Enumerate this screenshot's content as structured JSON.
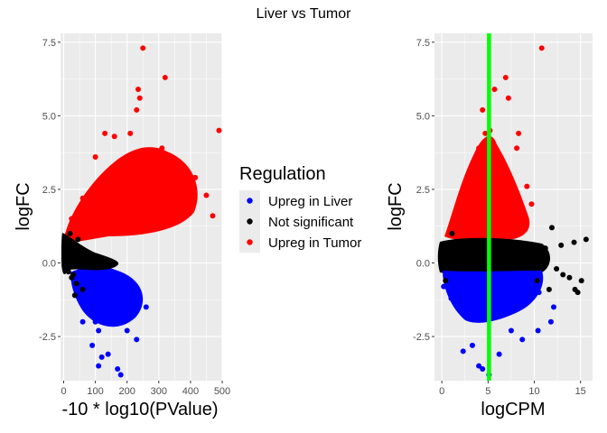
{
  "title": "Liver vs Tumor",
  "legend": {
    "title": "Regulation",
    "placement": "center",
    "entries": [
      {
        "label": "Upreg in Liver",
        "color": "#0000ff"
      },
      {
        "label": "Not significant",
        "color": "#000000"
      },
      {
        "label": "Upreg in Tumor",
        "color": "#ff0000"
      }
    ]
  },
  "colors": {
    "panel_bg": "#ebebeb",
    "grid": "#ffffff",
    "vline": "#00ff00"
  },
  "chart_data": [
    {
      "type": "scatter",
      "xlabel": "-10 * log10(PValue)",
      "ylabel": "logFC",
      "xlim": [
        -10,
        500
      ],
      "ylim": [
        -4.0,
        7.8
      ],
      "xticks": [
        0,
        100,
        200,
        300,
        400,
        500
      ],
      "yticks": [
        -2.5,
        0.0,
        2.5,
        5.0,
        7.5
      ],
      "ytick_labels": [
        "-2.5",
        "0.0",
        "2.5",
        "5.0",
        "7.5"
      ],
      "grid": true,
      "series": [
        {
          "name": "Upreg in Tumor",
          "color": "#ff0000",
          "points": [
            [
              250,
              7.3
            ],
            [
              235,
              5.9
            ],
            [
              320,
              6.3
            ],
            [
              240,
              5.6
            ],
            [
              230,
              5.2
            ],
            [
              490,
              4.5
            ],
            [
              130,
              4.4
            ],
            [
              160,
              4.3
            ],
            [
              210,
              4.4
            ],
            [
              310,
              3.9
            ],
            [
              360,
              3.4
            ],
            [
              415,
              2.9
            ],
            [
              470,
              1.6
            ],
            [
              450,
              2.3
            ],
            [
              380,
              1.9
            ],
            [
              330,
              2.6
            ],
            [
              280,
              3.2
            ],
            [
              60,
              2.2
            ],
            [
              100,
              3.6
            ],
            [
              180,
              3.0
            ],
            [
              25,
              1.5
            ],
            [
              70,
              1.3
            ],
            [
              150,
              1.9
            ],
            [
              240,
              1.2
            ]
          ]
        },
        {
          "name": "Upreg in Liver",
          "color": "#0000ff",
          "points": [
            [
              80,
              -1.5
            ],
            [
              110,
              -2.3
            ],
            [
              140,
              -3.1
            ],
            [
              170,
              -3.6
            ],
            [
              180,
              -3.8
            ],
            [
              120,
              -3.2
            ],
            [
              90,
              -2.8
            ],
            [
              60,
              -2.0
            ],
            [
              200,
              -2.3
            ],
            [
              230,
              -2.6
            ],
            [
              260,
              -1.5
            ],
            [
              240,
              -1.2
            ],
            [
              150,
              -1.0
            ],
            [
              130,
              -0.8
            ],
            [
              50,
              -1.2
            ],
            [
              100,
              -2.0
            ],
            [
              110,
              -3.5
            ]
          ]
        },
        {
          "name": "Not significant",
          "color": "#000000",
          "points": [
            [
              20,
              1.0
            ],
            [
              30,
              0.6
            ],
            [
              40,
              0.3
            ],
            [
              50,
              0.1
            ],
            [
              10,
              0.4
            ],
            [
              5,
              0.2
            ],
            [
              2,
              -0.1
            ],
            [
              15,
              -0.3
            ],
            [
              25,
              -0.5
            ],
            [
              40,
              -0.7
            ],
            [
              60,
              -0.9
            ],
            [
              30,
              -0.4
            ],
            [
              20,
              0.0
            ],
            [
              35,
              -1.1
            ],
            [
              45,
              0.8
            ],
            [
              15,
              0.7
            ]
          ]
        }
      ]
    },
    {
      "type": "scatter",
      "xlabel": "logCPM",
      "ylabel": "logFC",
      "xlim": [
        -0.8,
        16.3
      ],
      "ylim": [
        -4.0,
        7.8
      ],
      "xticks": [
        0,
        5,
        10,
        15
      ],
      "yticks": [
        -2.5,
        0.0,
        2.5,
        5.0,
        7.5
      ],
      "ytick_labels": [
        "-2.5",
        "0.0",
        "2.5",
        "5.0",
        "7.5"
      ],
      "grid": true,
      "vline": {
        "x": 5.1,
        "color": "#00ff00"
      },
      "series": [
        {
          "name": "Upreg in Tumor",
          "color": "#ff0000",
          "points": [
            [
              10.8,
              7.3
            ],
            [
              6.9,
              6.3
            ],
            [
              5.7,
              5.9
            ],
            [
              7.2,
              5.6
            ],
            [
              4.4,
              5.2
            ],
            [
              5.2,
              4.5
            ],
            [
              4.7,
              4.4
            ],
            [
              8.3,
              4.4
            ],
            [
              9.7,
              2.0
            ],
            [
              9.2,
              2.6
            ],
            [
              8.1,
              3.9
            ],
            [
              1.1,
              1.0
            ],
            [
              4.0,
              3.9
            ],
            [
              2.1,
              2.3
            ],
            [
              6.8,
              1.9
            ],
            [
              4.5,
              3.4
            ]
          ]
        },
        {
          "name": "Upreg in Liver",
          "color": "#0000ff",
          "points": [
            [
              5.1,
              -3.8
            ],
            [
              4.4,
              -3.6
            ],
            [
              4.0,
              -3.5
            ],
            [
              6.2,
              -3.1
            ],
            [
              2.3,
              -3.0
            ],
            [
              3.3,
              -2.8
            ],
            [
              8.7,
              -2.6
            ],
            [
              10.4,
              -2.3
            ],
            [
              7.5,
              -2.3
            ],
            [
              12.1,
              -1.5
            ],
            [
              11.8,
              -2.0
            ],
            [
              1.0,
              -1.2
            ],
            [
              0.2,
              -0.8
            ],
            [
              10.5,
              -1.0
            ]
          ]
        },
        {
          "name": "Not significant",
          "color": "#000000",
          "points": [
            [
              11.9,
              1.2
            ],
            [
              14.3,
              0.7
            ],
            [
              15.6,
              0.8
            ],
            [
              12.9,
              0.6
            ],
            [
              13.8,
              -0.5
            ],
            [
              14.4,
              -0.9
            ],
            [
              13.1,
              -0.4
            ],
            [
              12.4,
              -0.2
            ],
            [
              15.1,
              -0.6
            ],
            [
              11.2,
              0.5
            ],
            [
              10.3,
              -0.6
            ],
            [
              0.2,
              0.3
            ],
            [
              0.4,
              -0.6
            ],
            [
              14.7,
              -1.0
            ],
            [
              1.1,
              1.0
            ],
            [
              11.6,
              -0.9
            ]
          ]
        }
      ]
    }
  ]
}
